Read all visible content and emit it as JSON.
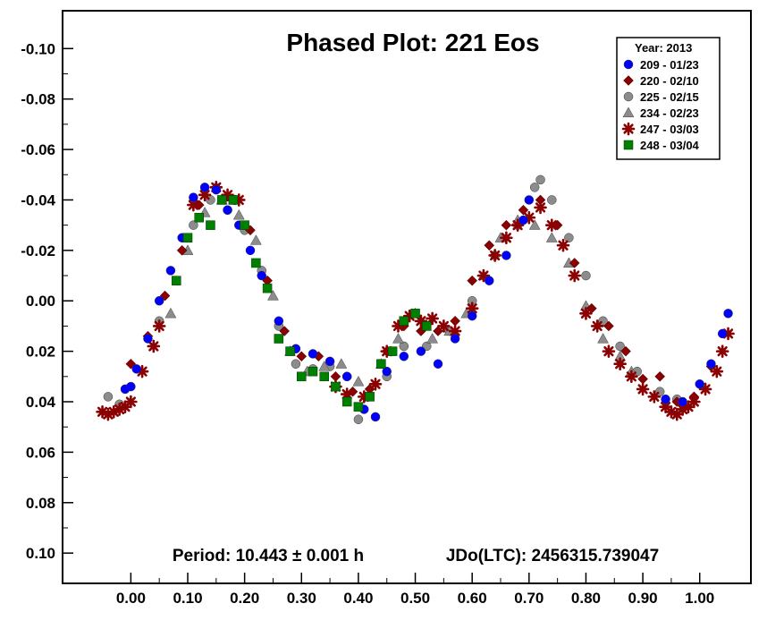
{
  "chart_data": {
    "type": "scatter",
    "title": "Phased Plot: 221 Eos",
    "xlabel": "",
    "ylabel": "",
    "xlim": [
      -0.12,
      1.09
    ],
    "ylim": [
      -0.115,
      0.112
    ],
    "y_inverted": true,
    "x_ticks": [
      "0.00",
      "0.10",
      "0.20",
      "0.30",
      "0.40",
      "0.50",
      "0.60",
      "0.70",
      "0.80",
      "0.90",
      "1.00"
    ],
    "x_tick_values": [
      0.0,
      0.1,
      0.2,
      0.3,
      0.4,
      0.5,
      0.6,
      0.7,
      0.8,
      0.9,
      1.0
    ],
    "y_ticks": [
      "-0.10",
      "-0.08",
      "-0.06",
      "-0.04",
      "-0.02",
      "0.00",
      "0.02",
      "0.04",
      "0.06",
      "0.08",
      "0.10"
    ],
    "y_tick_values": [
      -0.1,
      -0.08,
      -0.06,
      -0.04,
      -0.02,
      0.0,
      0.02,
      0.04,
      0.06,
      0.08,
      0.1
    ],
    "grid": false,
    "legend_position": "top-right",
    "legend_title": "Year: 2013",
    "period_text": "Period: 10.443 ± 0.001 h",
    "epoch_text": "JDo(LTC): 2456315.739047",
    "series": [
      {
        "name": "209 - 01/23",
        "marker": "circle",
        "color": "#0000ff",
        "x": [
          -0.01,
          0.0,
          0.01,
          0.03,
          0.05,
          0.07,
          0.09,
          0.11,
          0.13,
          0.15,
          0.17,
          0.19,
          0.21,
          0.23,
          0.26,
          0.29,
          0.32,
          0.35,
          0.38,
          0.41,
          0.43,
          0.45,
          0.48,
          0.51,
          0.54,
          0.57,
          0.6,
          0.63,
          0.66,
          0.69,
          0.7,
          0.94,
          0.97,
          1.0,
          1.02,
          1.04,
          1.05
        ],
        "y": [
          0.035,
          0.034,
          0.027,
          0.015,
          0.0,
          -0.012,
          -0.025,
          -0.041,
          -0.045,
          -0.044,
          -0.036,
          -0.03,
          -0.02,
          -0.01,
          0.008,
          0.019,
          0.021,
          0.024,
          0.03,
          0.043,
          0.046,
          0.028,
          0.022,
          0.02,
          0.025,
          0.015,
          0.006,
          -0.008,
          -0.018,
          -0.032,
          -0.04,
          0.039,
          0.04,
          0.033,
          0.025,
          0.013,
          0.005
        ]
      },
      {
        "name": "220 - 02/10",
        "marker": "diamond",
        "color": "#8b0000",
        "x": [
          0.0,
          0.03,
          0.06,
          0.09,
          0.12,
          0.15,
          0.18,
          0.21,
          0.24,
          0.27,
          0.3,
          0.33,
          0.36,
          0.39,
          0.42,
          0.45,
          0.48,
          0.51,
          0.54,
          0.57,
          0.6,
          0.63,
          0.66,
          0.69,
          0.72,
          0.75,
          0.78,
          0.81,
          0.84,
          0.87,
          0.9,
          0.93,
          0.96,
          0.99,
          1.02
        ],
        "y": [
          0.025,
          0.014,
          -0.002,
          -0.02,
          -0.038,
          -0.045,
          -0.04,
          -0.028,
          -0.008,
          0.012,
          0.022,
          0.022,
          0.03,
          0.036,
          0.035,
          0.02,
          0.01,
          0.012,
          0.012,
          0.008,
          -0.008,
          -0.022,
          -0.03,
          -0.036,
          -0.04,
          -0.03,
          -0.015,
          0.003,
          0.01,
          0.02,
          0.031,
          0.03,
          0.04,
          0.038,
          0.026
        ]
      },
      {
        "name": "225 - 02/15",
        "marker": "circle",
        "color": "#8c8c8c",
        "x": [
          -0.04,
          -0.02,
          0.05,
          0.08,
          0.11,
          0.14,
          0.17,
          0.2,
          0.23,
          0.26,
          0.29,
          0.32,
          0.35,
          0.38,
          0.4,
          0.45,
          0.48,
          0.52,
          0.56,
          0.6,
          0.64,
          0.68,
          0.71,
          0.72,
          0.74,
          0.77,
          0.8,
          0.83,
          0.86,
          0.89,
          0.93,
          0.96
        ],
        "y": [
          0.038,
          0.041,
          0.008,
          -0.008,
          -0.03,
          -0.04,
          -0.036,
          -0.028,
          -0.012,
          0.01,
          0.025,
          0.027,
          0.026,
          0.03,
          0.047,
          0.03,
          0.018,
          0.018,
          0.012,
          0.0,
          -0.018,
          -0.03,
          -0.045,
          -0.048,
          -0.04,
          -0.025,
          -0.01,
          0.008,
          0.018,
          0.028,
          0.036,
          0.039
        ]
      },
      {
        "name": "234 - 02/23",
        "marker": "triangle",
        "color": "#8c8c8c",
        "x": [
          0.07,
          0.1,
          0.13,
          0.16,
          0.19,
          0.22,
          0.25,
          0.28,
          0.31,
          0.34,
          0.37,
          0.4,
          0.44,
          0.47,
          0.5,
          0.53,
          0.56,
          0.59,
          0.62,
          0.65,
          0.68,
          0.71,
          0.74,
          0.77,
          0.8,
          0.83,
          0.86,
          0.88
        ],
        "y": [
          0.005,
          -0.02,
          -0.035,
          -0.04,
          -0.034,
          -0.024,
          -0.002,
          0.02,
          0.028,
          0.026,
          0.025,
          0.032,
          0.025,
          0.015,
          0.005,
          0.015,
          0.012,
          0.005,
          -0.01,
          -0.025,
          -0.032,
          -0.03,
          -0.025,
          -0.015,
          0.002,
          0.015,
          0.022,
          0.028
        ]
      },
      {
        "name": "247 - 03/03",
        "marker": "star",
        "color": "#8b0000",
        "x": [
          -0.05,
          -0.04,
          -0.03,
          -0.02,
          -0.01,
          0.0,
          0.02,
          0.04,
          0.05,
          0.11,
          0.13,
          0.15,
          0.17,
          0.19,
          0.36,
          0.38,
          0.41,
          0.43,
          0.45,
          0.47,
          0.49,
          0.51,
          0.53,
          0.55,
          0.57,
          0.6,
          0.62,
          0.64,
          0.66,
          0.68,
          0.7,
          0.72,
          0.74,
          0.76,
          0.78,
          0.8,
          0.82,
          0.84,
          0.86,
          0.88,
          0.9,
          0.92,
          0.94,
          0.95,
          0.96,
          0.97,
          0.98,
          0.99,
          1.01,
          1.03,
          1.04,
          1.05
        ],
        "y": [
          0.044,
          0.045,
          0.044,
          0.043,
          0.042,
          0.04,
          0.028,
          0.018,
          0.01,
          -0.038,
          -0.042,
          -0.045,
          -0.042,
          -0.04,
          0.034,
          0.037,
          0.038,
          0.033,
          0.02,
          0.01,
          0.006,
          0.008,
          0.007,
          0.01,
          0.012,
          0.003,
          -0.01,
          -0.018,
          -0.025,
          -0.03,
          -0.033,
          -0.037,
          -0.03,
          -0.022,
          -0.01,
          0.005,
          0.01,
          0.02,
          0.025,
          0.03,
          0.035,
          0.038,
          0.042,
          0.044,
          0.045,
          0.043,
          0.042,
          0.04,
          0.035,
          0.028,
          0.02,
          0.013
        ]
      },
      {
        "name": "248 - 03/04",
        "marker": "square",
        "color": "#008000",
        "x": [
          0.08,
          0.1,
          0.12,
          0.14,
          0.16,
          0.18,
          0.2,
          0.22,
          0.24,
          0.26,
          0.28,
          0.3,
          0.32,
          0.34,
          0.36,
          0.38,
          0.4,
          0.42,
          0.44,
          0.46,
          0.48,
          0.5,
          0.52
        ],
        "y": [
          -0.008,
          -0.025,
          -0.033,
          -0.03,
          -0.04,
          -0.04,
          -0.03,
          -0.015,
          -0.005,
          0.015,
          0.02,
          0.03,
          0.028,
          0.03,
          0.034,
          0.04,
          0.042,
          0.038,
          0.025,
          0.02,
          0.008,
          0.005,
          0.01
        ]
      }
    ]
  }
}
